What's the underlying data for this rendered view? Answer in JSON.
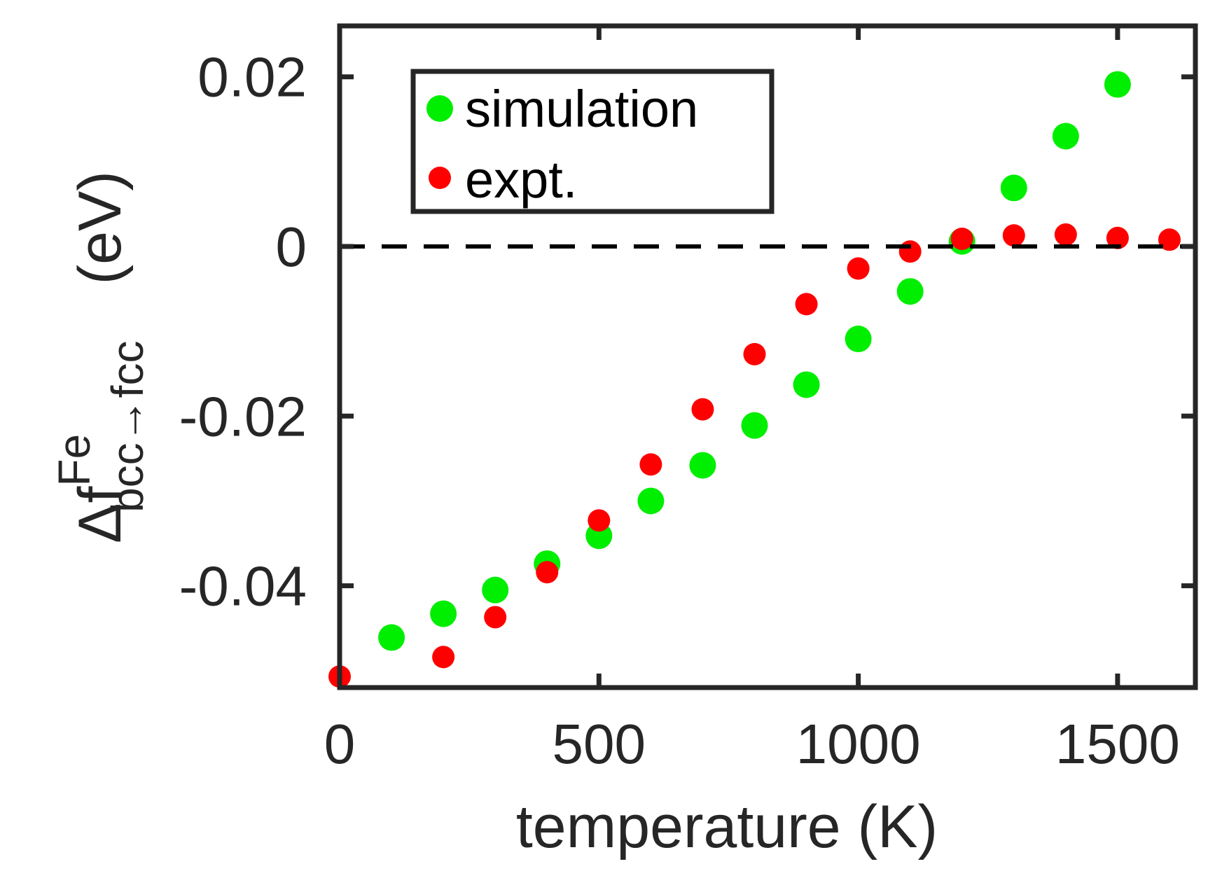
{
  "chart_data": {
    "type": "scatter",
    "title": "",
    "xlabel": "temperature (K)",
    "ylabel": {
      "prefix": "Δf",
      "superscript": "Fe",
      "subscript": "bcc→fcc",
      "unit": "(eV)"
    },
    "xlim": [
      0,
      1650
    ],
    "ylim": [
      -0.052,
      0.026
    ],
    "xticks": [
      0,
      500,
      1000,
      1500
    ],
    "xtick_labels": [
      "0",
      "500",
      "1000",
      "1500"
    ],
    "yticks": [
      -0.04,
      -0.02,
      0,
      0.02
    ],
    "ytick_labels": [
      "-0.04",
      "-0.02",
      "0",
      "0.02"
    ],
    "grid": false,
    "legend_position": "top-left",
    "reference_line": {
      "y": 0,
      "style": "dashed",
      "color": "#000000"
    },
    "series": [
      {
        "name": "simulation",
        "color": "#00ee00",
        "marker": "circle-large",
        "x": [
          100,
          200,
          300,
          400,
          500,
          600,
          700,
          800,
          900,
          1000,
          1100,
          1200,
          1300,
          1400,
          1500
        ],
        "y": [
          -0.0461,
          -0.0433,
          -0.0405,
          -0.0374,
          -0.0341,
          -0.03,
          -0.0258,
          -0.0211,
          -0.0163,
          -0.0109,
          -0.0053,
          0.0006,
          0.0069,
          0.013,
          0.0191
        ]
      },
      {
        "name": "expt.",
        "color": "#ff0000",
        "marker": "circle",
        "x": [
          0,
          200,
          300,
          400,
          500,
          600,
          700,
          800,
          900,
          1000,
          1100,
          1200,
          1300,
          1400,
          1500,
          1600
        ],
        "y": [
          -0.0507,
          -0.0484,
          -0.0437,
          -0.0384,
          -0.0323,
          -0.0257,
          -0.0192,
          -0.0127,
          -0.0068,
          -0.0026,
          -0.0006,
          0.0009,
          0.0013,
          0.0014,
          0.001,
          0.0008
        ]
      }
    ]
  }
}
